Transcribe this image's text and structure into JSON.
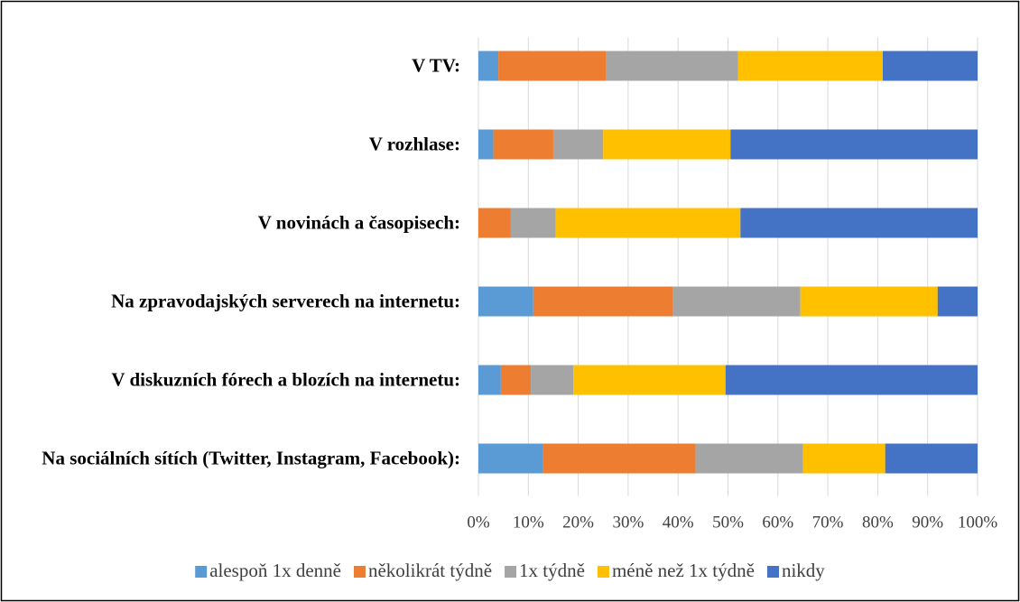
{
  "chart_data": {
    "type": "stacked-bar-horizontal",
    "categories": [
      "V TV:",
      "V rozhlase:",
      "V novinách a časopisech:",
      "Na zpravodajských serverech na internetu:",
      "V diskuzních fórech a blozích na internetu:",
      "Na sociálních sítích (Twitter, Instagram, Facebook):"
    ],
    "series": [
      {
        "name": "alespoň 1x denně",
        "color": "#5b9bd5",
        "values": [
          4,
          3,
          0,
          11,
          4.5,
          13
        ]
      },
      {
        "name": "několikrát týdně",
        "color": "#ed7d31",
        "values": [
          21.5,
          12,
          6.5,
          28,
          6,
          30.5
        ]
      },
      {
        "name": "1x týdně",
        "color": "#a5a5a5",
        "values": [
          26.5,
          10,
          9,
          25.5,
          8.5,
          21.5
        ]
      },
      {
        "name": "méně než 1x týdně",
        "color": "#ffc000",
        "values": [
          29,
          25.5,
          37,
          27.5,
          30.5,
          16.5
        ]
      },
      {
        "name": "nikdy",
        "color": "#4472c4",
        "values": [
          19,
          49.5,
          47.5,
          8,
          50.5,
          18.5
        ]
      }
    ],
    "xlim": [
      0,
      100
    ],
    "xticks": [
      {
        "value": 0,
        "label": "0%"
      },
      {
        "value": 10,
        "label": "10%"
      },
      {
        "value": 20,
        "label": "20%"
      },
      {
        "value": 30,
        "label": "30%"
      },
      {
        "value": 40,
        "label": "40%"
      },
      {
        "value": 50,
        "label": "50%"
      },
      {
        "value": 60,
        "label": "60%"
      },
      {
        "value": 70,
        "label": "70%"
      },
      {
        "value": 80,
        "label": "80%"
      },
      {
        "value": 90,
        "label": "90%"
      },
      {
        "value": 100,
        "label": "100%"
      }
    ],
    "grid": true,
    "legend": "bottom"
  }
}
